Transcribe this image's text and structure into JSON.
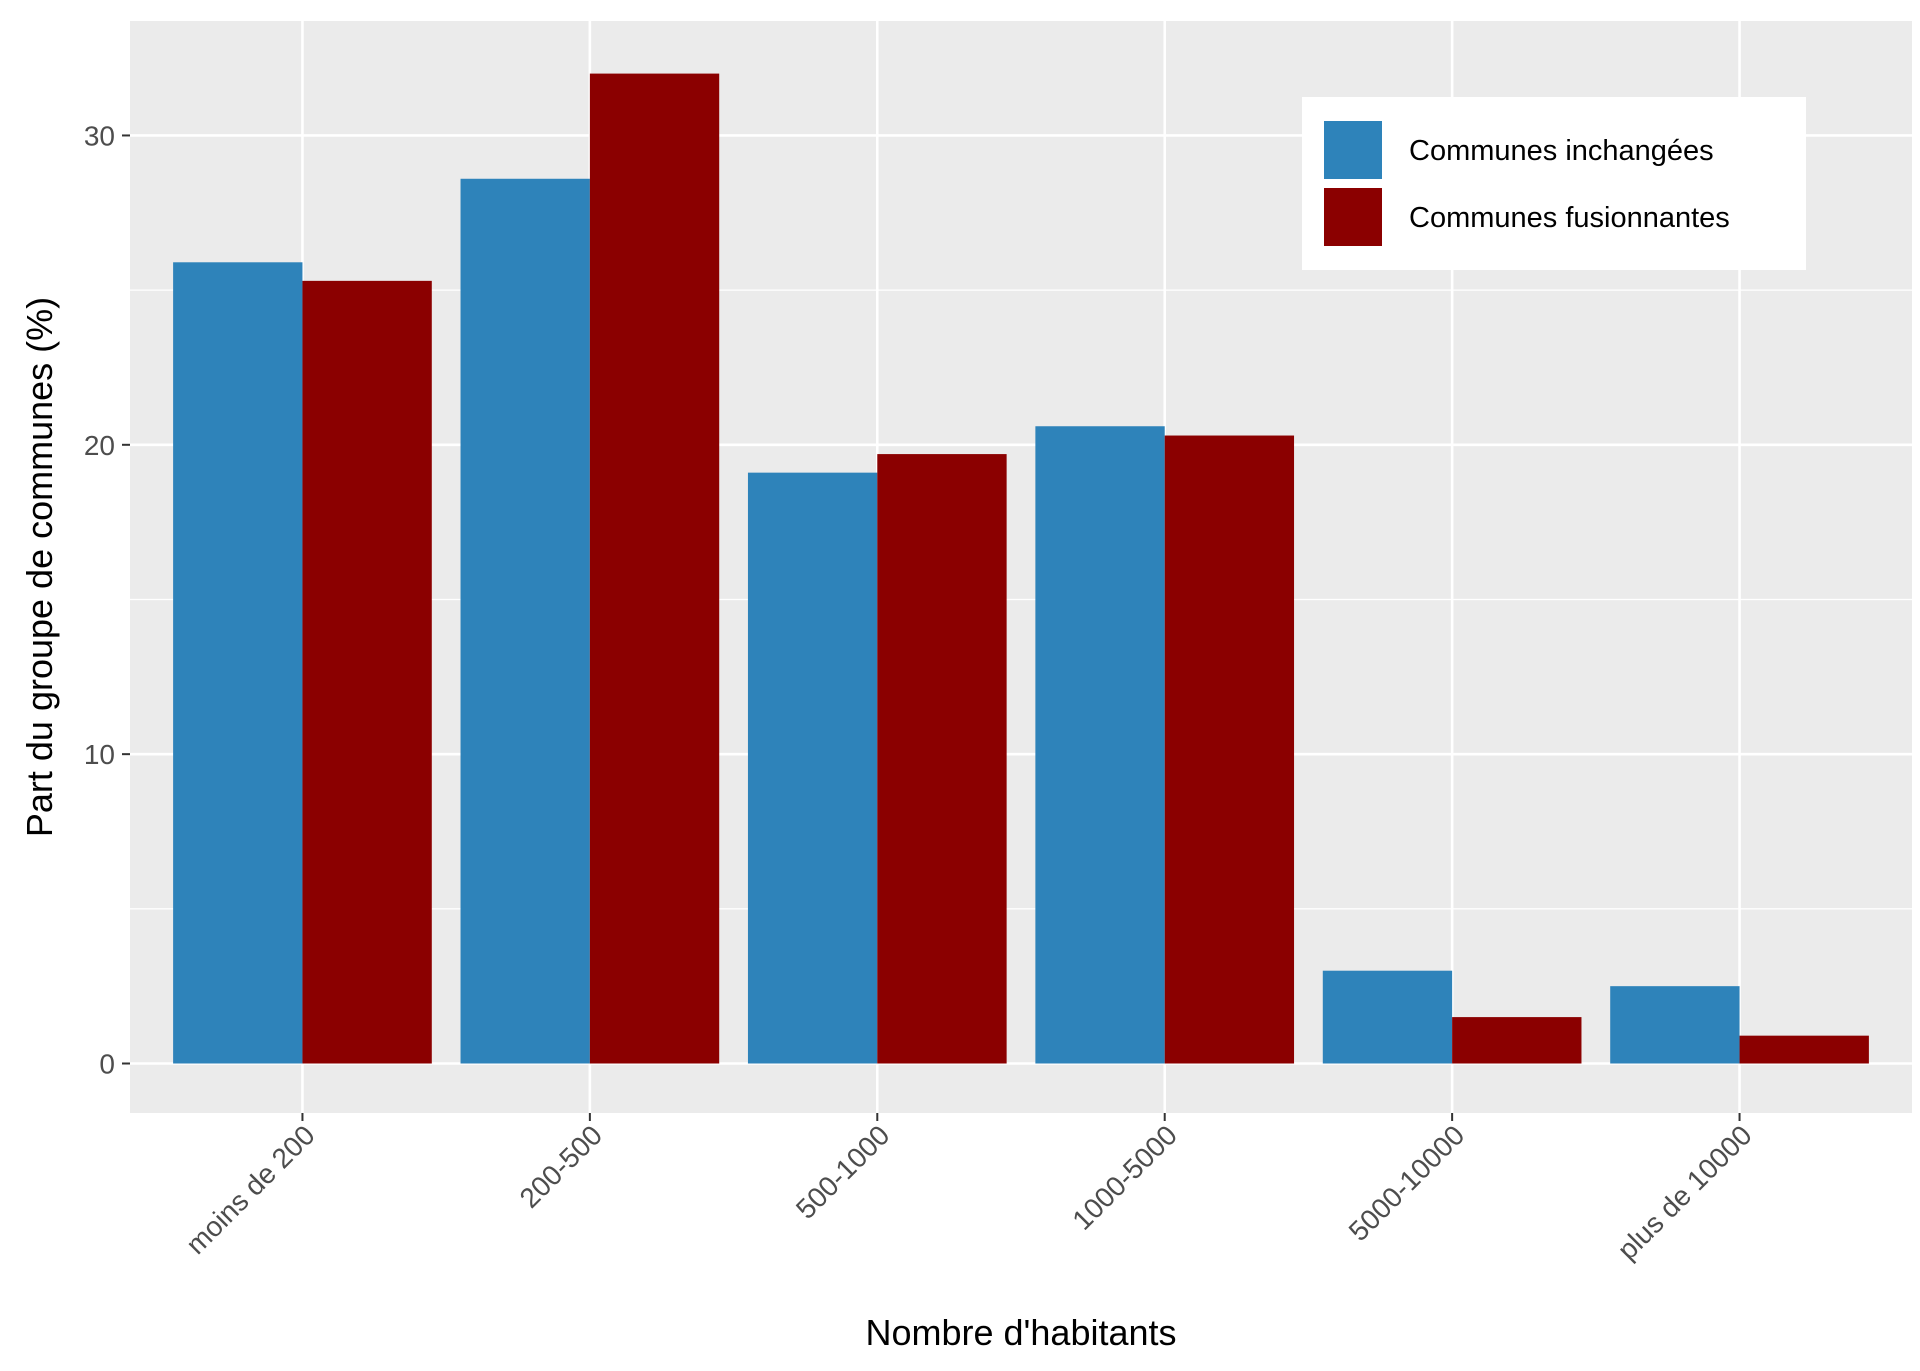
{
  "chart_data": {
    "type": "bar",
    "title": "",
    "xlabel": "Nombre d'habitants",
    "ylabel": "Part du groupe de communes (%)",
    "categories": [
      "moins de 200",
      "200-500",
      "500-1000",
      "1000-5000",
      "5000-10000",
      "plus de 10000"
    ],
    "series": [
      {
        "name": "Communes inchangées",
        "color": "#2E83BA",
        "values": [
          25.9,
          28.6,
          19.1,
          20.6,
          3.0,
          2.5
        ]
      },
      {
        "name": "Communes fusionnantes",
        "color": "#8B0000",
        "values": [
          25.3,
          32.0,
          19.7,
          20.3,
          1.5,
          0.9
        ]
      }
    ],
    "ylim": [
      -1.6,
      33.7
    ],
    "yticks": [
      0,
      10,
      20,
      30
    ],
    "grid": true,
    "panel_background": "#EBEBEB",
    "legend_position": "top-right"
  }
}
